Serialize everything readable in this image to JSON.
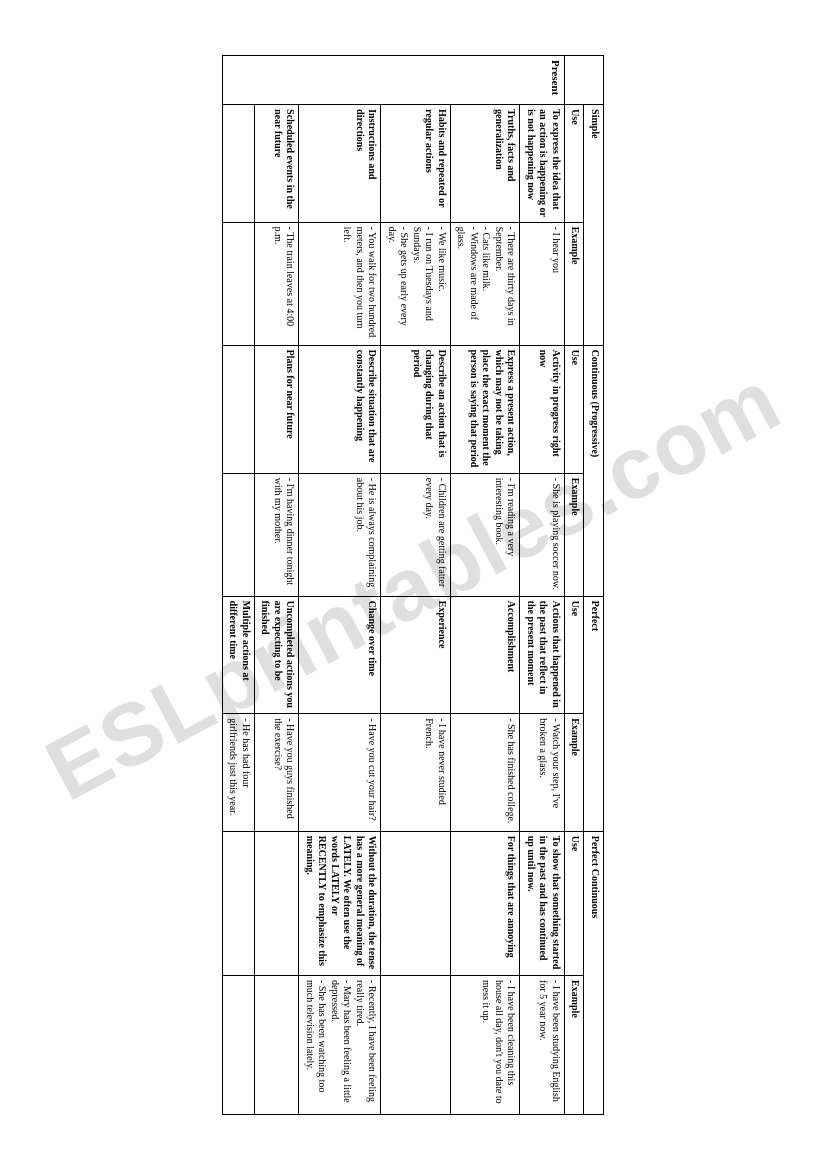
{
  "watermark": "ESLprintables.com",
  "tense_label": "Present",
  "headers": {
    "empty": "",
    "groups": [
      "Simple",
      "Continuous (Progressive)",
      "Perfect",
      "Perfect Continuous"
    ],
    "sub_use": "Use",
    "sub_example": "Example"
  },
  "rows": [
    {
      "simple_use": "To express the idea that an action is happening or is not happening now",
      "simple_ex": "- I hear you",
      "cont_use": "Activity in progress right now",
      "cont_ex": "- She is playing soccer now.",
      "perf_use": "Actions that happened in the past that reflect in the present moment",
      "perf_ex": "- Watch your step, I've broken a glass.",
      "pc_use": "To show that something started in the past and has continued up until now.",
      "pc_ex": "- I have been studying English for 5 year now."
    },
    {
      "simple_use": "Truths, facts and generalization",
      "simple_ex": "- There are thirty days in September.\n- Cats like milk.\n- Windows are made of glass.",
      "cont_use": "Express a present action, which may not be taking place the exact moment the person is saying that period",
      "cont_ex": "- I'm reading a very interesting book.",
      "perf_use": "Accomplishment",
      "perf_ex": "- She has finished college.",
      "pc_use": "For things that are annoying",
      "pc_ex": "- I have been cleaning this house all day, don't you date to mess it up."
    },
    {
      "simple_use": "Habits and repeated or regular actions",
      "simple_ex": "- We like music.\n- I run on Tuesdays and Sundays.\n- She gets up early every day.",
      "cont_use": "Describe an action that is changing during that period",
      "cont_ex": "- Children are getting fatter every day.",
      "perf_use": "Experience",
      "perf_ex": "- I have never studied French.",
      "pc_use": "",
      "pc_ex": ""
    },
    {
      "simple_use": "Instructions and directions",
      "simple_ex": "- You walk for two hundred meters, and then you turn left.",
      "cont_use": "Describe situation that are constantly happening",
      "cont_ex": "- He is always complaining about his job.",
      "perf_use": "Change over time",
      "perf_ex": "- Have you cut your hair?",
      "pc_use": "Without the duration, the tense has a more general meaning of LATELY. We often use the words LATELY or RECENTLY to emphasize this meaning.",
      "pc_ex": "- Recently, I have been feeling really tired.\n- Mary has been feeling a little depressed.\n- She has been watching too much television lately."
    },
    {
      "simple_use": "Scheduled events in the near future",
      "simple_ex": "- The train leaves at 4:00 p.m.",
      "cont_use": "Plans for near future",
      "cont_ex": "- I'm having dinner tonight with my mother.",
      "perf_use": "Uncompleted actions you are expecting to be finished",
      "perf_ex": "- Have you guys finished the exercise?",
      "pc_use": "",
      "pc_ex": ""
    },
    {
      "simple_use": "",
      "simple_ex": "",
      "cont_use": "",
      "cont_ex": "",
      "perf_use": "Multiple actions at different time",
      "perf_ex": "- He has had four girlfriends just this year.",
      "pc_use": "",
      "pc_ex": ""
    }
  ]
}
